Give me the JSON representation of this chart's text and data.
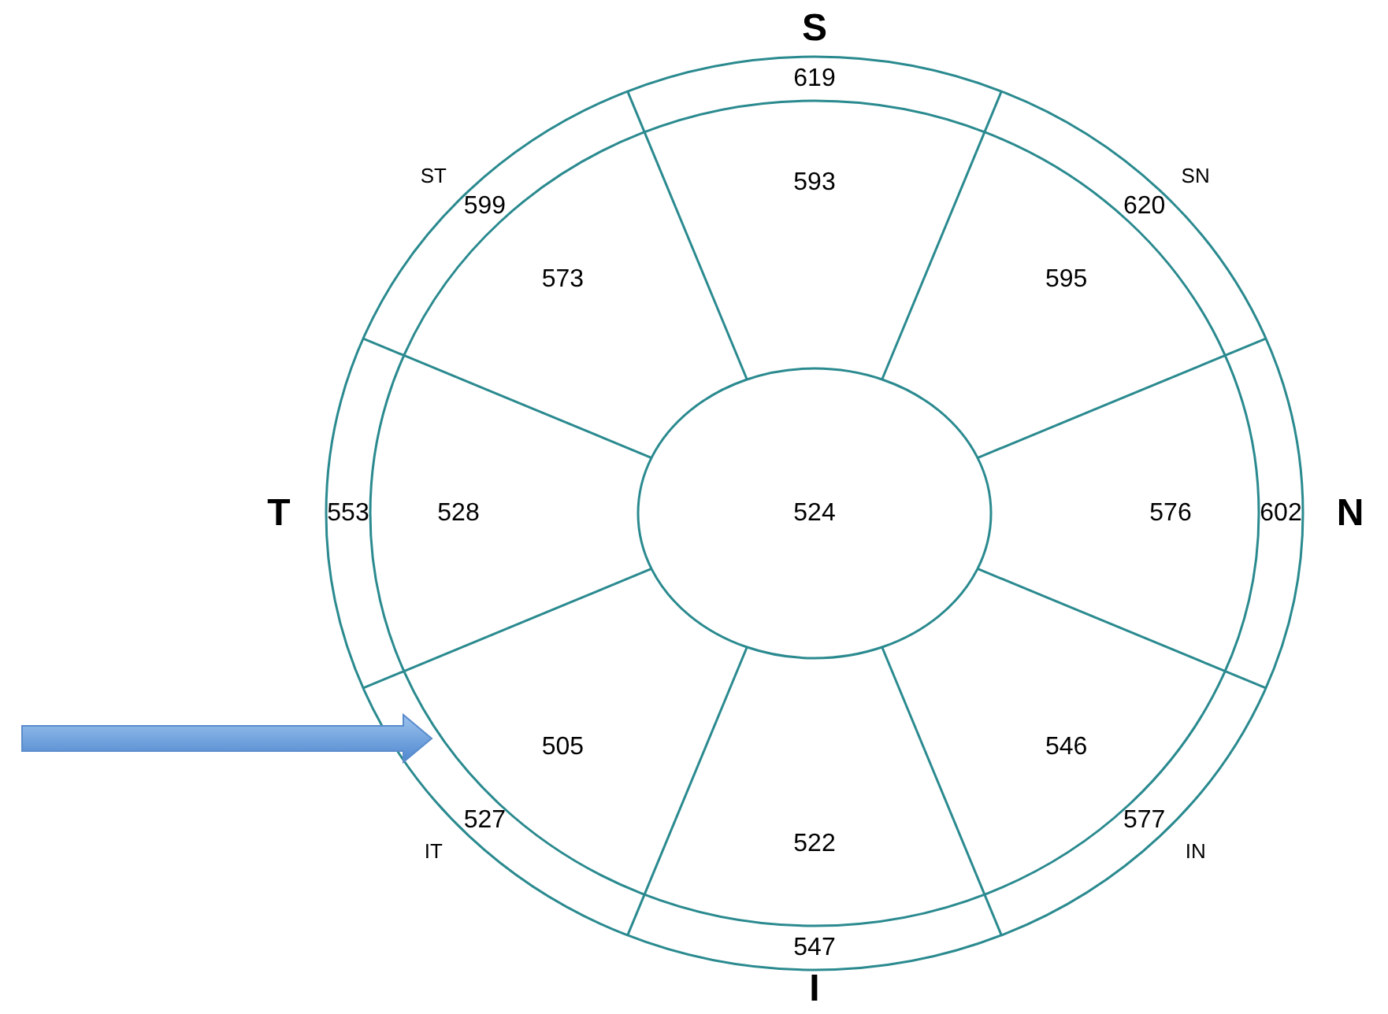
{
  "chart_data": {
    "type": "other",
    "color": "#2a8a8f",
    "data_labels": true,
    "categories": [
      "S",
      "SN",
      "N",
      "IN",
      "I",
      "IT",
      "T",
      "ST"
    ],
    "series": [
      {
        "values": [
          619,
          620,
          602,
          577,
          547,
          527,
          553,
          599
        ]
      },
      {
        "values": [
          593,
          595,
          576,
          546,
          522,
          505,
          528,
          573
        ]
      }
    ],
    "annotations": [
      "524"
    ]
  }
}
